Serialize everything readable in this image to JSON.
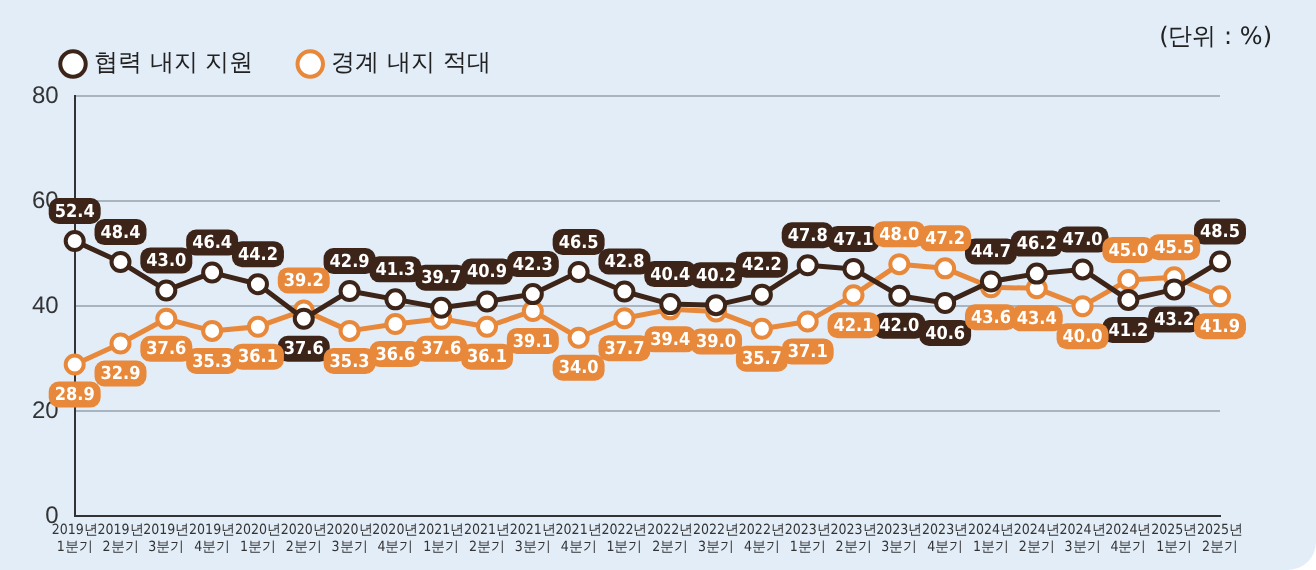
{
  "chart_data": {
    "type": "line",
    "categories": [
      "2019년 1분기",
      "2019년 2분기",
      "2019년 3분기",
      "2019년 4분기",
      "2020년 1분기",
      "2020년 2분기",
      "2020년 3분기",
      "2020년 4분기",
      "2021년 1분기",
      "2021년 2분기",
      "2021년 3분기",
      "2021년 4분기",
      "2022년 1분기",
      "2022년 2분기",
      "2022년 3분기",
      "2022년 4분기",
      "2023년 1분기",
      "2023년 2분기",
      "2023년 3분기",
      "2023년 4분기",
      "2024년 1분기",
      "2024년 2분기",
      "2024년 3분기",
      "2024년 4분기",
      "2025년 1분기",
      "2025년 2분기"
    ],
    "series": [
      {
        "name": "협력 내지 지원",
        "color": "#3d2418",
        "values": [
          52.4,
          48.4,
          43.0,
          46.4,
          44.2,
          37.6,
          42.9,
          41.3,
          39.7,
          40.9,
          42.3,
          46.5,
          42.8,
          40.4,
          40.2,
          42.2,
          47.8,
          47.1,
          42.0,
          40.6,
          44.7,
          46.2,
          47.0,
          41.2,
          43.2,
          48.5
        ],
        "value_labels": [
          "52.4",
          "48.4",
          "43.0",
          "46.4",
          "44.2",
          "37.6",
          "42.9",
          "41.3",
          "39.7",
          "40.9",
          "42.3",
          "46.5",
          "42.8",
          "40.4",
          "40.2",
          "42.2",
          "47.8",
          "47.1",
          "42.0",
          "40.6",
          "44.7",
          "46.2",
          "47.0",
          "41.2",
          "43.2",
          "48.5"
        ]
      },
      {
        "name": "경계 내지 적대",
        "color": "#e8883a",
        "values": [
          28.9,
          32.9,
          37.6,
          35.3,
          36.1,
          39.2,
          35.3,
          36.6,
          37.6,
          36.1,
          39.1,
          34.0,
          37.7,
          39.4,
          39.0,
          35.7,
          37.1,
          42.1,
          48.0,
          47.2,
          43.6,
          43.4,
          40.0,
          45.0,
          45.5,
          41.9
        ],
        "value_labels": [
          "28.9",
          "32.9",
          "37.6",
          "35.3",
          "36.1",
          "39.2",
          "35.3",
          "36.6",
          "37.6",
          "36.1",
          "39.1",
          "34.0",
          "37.7",
          "39.4",
          "39.0",
          "35.7",
          "37.1",
          "42.1",
          "48.0",
          "47.2",
          "43.6",
          "43.4",
          "40.0",
          "45.0",
          "45.5",
          "41.9"
        ]
      }
    ],
    "ylim": [
      0,
      80
    ],
    "yticks": [
      0,
      20,
      40,
      60,
      80
    ],
    "grid": "y",
    "legend": "top left",
    "marker": "circle",
    "line_style": "solid",
    "annotations": [
      "(단위 : %)"
    ]
  }
}
